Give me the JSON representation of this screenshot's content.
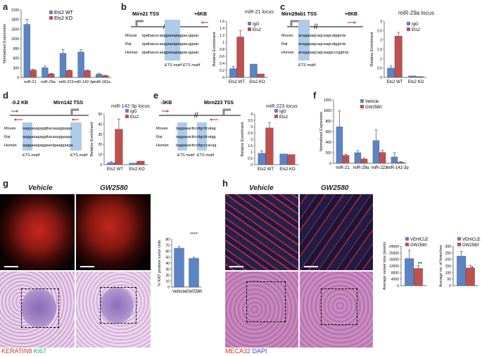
{
  "panel_labels": {
    "a": "a",
    "b": "b",
    "c": "c",
    "d": "d",
    "e": "e",
    "f": "f",
    "g": "g",
    "h": "h"
  },
  "colors": {
    "wt": "#5b84c4",
    "ko": "#c0504d",
    "vehicle": "#5b84c4",
    "gw": "#c0504d",
    "highlight": "#aecbea",
    "arrow": "#c0504d"
  },
  "a": {
    "ylabel": "Normalized Expression",
    "legend": [
      "Ets2 WT",
      "Ets2 KO"
    ]
  },
  "b": {
    "tss": "Mirn21 TSS",
    "offset": "+6KB",
    "chart_title": "miR-21 locus",
    "seq_rows": [
      {
        "sp": "Mouse",
        "seq": "tgattaaca-aaggaaagaggaa-ggaac"
      },
      {
        "sp": "Rat",
        "seq": "tgattaaca-aaggaaagaagaa-ggaac"
      },
      {
        "sp": "Human",
        "seq": "tgattaaca-aaggaaagaggaa-ggaac"
      }
    ],
    "motif1": "ETS motif",
    "motif2": "ETS motif",
    "ylabel": "Relative Enrichment",
    "legend": [
      "IgG",
      "Ets2"
    ]
  },
  "c": {
    "tss": "Mirn29ab1 TSS",
    "offset": "+6KB",
    "chart_title": "miR-29a locus",
    "seq_rows": [
      {
        "sp": "Mouse",
        "seq": "acaggaagcagcaagcatggtcta"
      },
      {
        "sp": "Rat",
        "seq": "acaggaagcagcaagcatggtcta"
      },
      {
        "sp": "Human",
        "seq": "acaggaagcagcaaggcccggtcta"
      }
    ],
    "motif": "ETS motif",
    "ylabel": "Relative Enrichment",
    "legend": [
      "IgG",
      "Ets2"
    ]
  },
  "d": {
    "left": "-0.2 KB",
    "tss": "Mirn142 TSS",
    "chart_title": "miR-142-3p locus",
    "seq_rows": [
      {
        "sp": "Mouse",
        "seq": "aaggaaagaggttacaaaggaaga"
      },
      {
        "sp": "Rat",
        "seq": "aaggaaagaggttacaaaggaaga"
      },
      {
        "sp": "Human",
        "seq": "aaggaaagaggaactgaaggaaga"
      }
    ],
    "motif1": "ETS motif",
    "motif2": "ETS motif",
    "ylabel": "Relative Enrichment",
    "legend": [
      "IgG",
      "Ets2"
    ]
  },
  "e": {
    "left": "-3KB",
    "tss": "Mirn223 TSS",
    "chart_title": "miR-223 locus",
    "seq_rows": [
      {
        "sp": "Mouse",
        "seq": "taggaaacttccttgcttcatag"
      },
      {
        "sp": "Rat",
        "seq": "taggaaacttccttgcttcatgg"
      },
      {
        "sp": "Human",
        "seq": "taggaaacttccttgcccacag"
      }
    ],
    "motif1": "ETS motif",
    "motif2": "ETS motif",
    "ylabel": "Relative Enrichment",
    "legend": [
      "IgG",
      "Ets2"
    ]
  },
  "f": {
    "ylabel": "Normalized Expression",
    "legend": [
      "Vehicle",
      "GW2580"
    ]
  },
  "g": {
    "vehicle": "Vehicle",
    "gw": "GW2580",
    "ylabel": "% Ki67 positive tumor cells",
    "sig": "****",
    "stain1": "KERATIN8",
    "stain2": "Ki67"
  },
  "h": {
    "vehicle": "Vehicle",
    "gw": "GW2580",
    "ylabel1": "Average vessel size (pixels)",
    "ylabel2": "Average no. of branches",
    "legend": [
      "VEHICLE",
      "GW2580"
    ],
    "sig1": "**",
    "sig2": "*",
    "stain1": "MECA32",
    "stain2": "DAPI"
  },
  "chart_data": [
    {
      "id": "a",
      "type": "bar",
      "categories": [
        "miR-21",
        "miR-29a",
        "miR-223",
        "miR-142-3p",
        "miR-181a"
      ],
      "series": [
        {
          "name": "Ets2 WT",
          "values": [
            1650,
            300,
            750,
            790,
            100
          ],
          "err": [
            160,
            50,
            110,
            70,
            30
          ]
        },
        {
          "name": "Ets2 KO",
          "values": [
            230,
            110,
            215,
            215,
            55
          ],
          "err": [
            20,
            15,
            20,
            15,
            10
          ]
        }
      ],
      "ylim": [
        0,
        2100
      ],
      "yticks": [
        0,
        300,
        600,
        900,
        1200,
        1500,
        1800,
        2100
      ],
      "ylabel": "Normalized Expression"
    },
    {
      "id": "b",
      "type": "bar",
      "categories": [
        "Ets2 WT",
        "Ets2 KO"
      ],
      "series": [
        {
          "name": "IgG",
          "values": [
            0.25,
            0.38
          ],
          "err": [
            0.06,
            0
          ]
        },
        {
          "name": "Ets2",
          "values": [
            1.15,
            0.1
          ],
          "err": [
            0.18,
            0
          ]
        }
      ],
      "ylim": [
        0,
        1.6
      ],
      "yticks": [
        0,
        0.2,
        0.4,
        0.6,
        0.8,
        1,
        1.2,
        1.4,
        1.6
      ],
      "ylabel": "Relative Enrichment"
    },
    {
      "id": "c",
      "type": "bar",
      "categories": [
        "Ets2 WT",
        "Ets2 KO"
      ],
      "series": [
        {
          "name": "IgG",
          "values": [
            0.5,
            0.08
          ],
          "err": [
            0.12,
            0
          ]
        },
        {
          "name": "Ets2",
          "values": [
            2.2,
            0.05
          ],
          "err": [
            0.2,
            0
          ]
        }
      ],
      "ylim": [
        0,
        3
      ],
      "yticks": [
        0,
        0.5,
        1,
        1.5,
        2,
        2.5,
        3
      ],
      "ylabel": "Relative Enrichment"
    },
    {
      "id": "d",
      "type": "bar",
      "categories": [
        "Ets2 WT",
        "Ets2 KO"
      ],
      "series": [
        {
          "name": "IgG",
          "values": [
            2,
            1.5
          ],
          "err": [
            1,
            0
          ]
        },
        {
          "name": "Ets2",
          "values": [
            35,
            3.5
          ],
          "err": [
            10,
            0
          ]
        }
      ],
      "ylim": [
        0,
        50
      ],
      "yticks": [
        0,
        10,
        20,
        30,
        40,
        50
      ],
      "ylabel": "Relative Enrichment"
    },
    {
      "id": "e",
      "type": "bar",
      "categories": [
        "Ets2 WT",
        "Ets2 KO"
      ],
      "series": [
        {
          "name": "IgG",
          "values": [
            0.9,
            0.85
          ],
          "err": [
            0.2,
            0
          ]
        },
        {
          "name": "Ets2",
          "values": [
            2.9,
            0.8
          ],
          "err": [
            0.4,
            0
          ]
        }
      ],
      "ylim": [
        0,
        4
      ],
      "yticks": [
        0,
        0.5,
        1,
        1.5,
        2,
        2.5,
        3,
        3.5,
        4
      ],
      "ylabel": "Relative Enrichment"
    },
    {
      "id": "f",
      "type": "bar",
      "categories": [
        "miR-21",
        "miR-29a",
        "miR-223",
        "miR-142-3p"
      ],
      "series": [
        {
          "name": "Vehicle",
          "values": [
            690,
            200,
            430,
            120
          ],
          "err": [
            300,
            40,
            200,
            80
          ]
        },
        {
          "name": "GW2580",
          "values": [
            150,
            80,
            205,
            20
          ],
          "err": [
            20,
            15,
            40,
            10
          ]
        }
      ],
      "ylim": [
        0,
        1200
      ],
      "yticks": [
        0,
        200,
        400,
        600,
        800,
        1000,
        1200
      ],
      "ylabel": "Normalized Expression"
    },
    {
      "id": "g",
      "type": "bar",
      "categories": [
        "Vehicle",
        "GW2580"
      ],
      "series": [
        {
          "name": "",
          "values": [
            65,
            48
          ],
          "err": [
            3,
            2
          ]
        }
      ],
      "ylim": [
        0,
        80
      ],
      "yticks": [
        0,
        10,
        20,
        30,
        40,
        50,
        60,
        70,
        80
      ],
      "ylabel": "% Ki67 positive tumor cells"
    },
    {
      "id": "h1",
      "type": "bar",
      "categories": [
        ""
      ],
      "series": [
        {
          "name": "VEHICLE",
          "values": [
            16500
          ],
          "err": [
            5000
          ]
        },
        {
          "name": "GW2580",
          "values": [
            10500
          ],
          "err": [
            1800
          ]
        }
      ],
      "ylim": [
        0,
        24000
      ],
      "yticks": [
        0,
        4000,
        8000,
        12000,
        16000,
        20000,
        24000
      ],
      "ylabel": "Average vessel size (pixels)"
    },
    {
      "id": "h2",
      "type": "bar",
      "categories": [
        ""
      ],
      "series": [
        {
          "name": "VEHICLE",
          "values": [
            225
          ],
          "err": [
            35
          ]
        },
        {
          "name": "GW2580",
          "values": [
            135
          ],
          "err": [
            20
          ]
        }
      ],
      "ylim": [
        0,
        300
      ],
      "yticks": [
        0,
        50,
        100,
        150,
        200,
        250,
        300
      ],
      "ylabel": "Average no. of branches"
    }
  ]
}
